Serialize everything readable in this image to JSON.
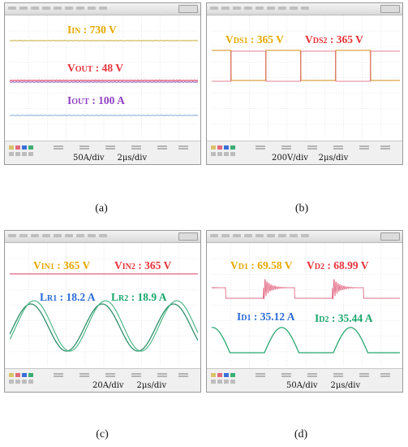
{
  "colors": {
    "orange": "#e6a800",
    "red": "#e8333a",
    "purple": "#8e3fc4",
    "blue": "#2a6bd6",
    "green": "#1aa66c",
    "trace_yellow": "#d4c26a",
    "trace_red": "#e0607a",
    "trace_purple": "#9b6fc6",
    "trace_green": "#2aa871"
  },
  "panels": [
    {
      "caption": "(a)",
      "scale_left": "50A/div",
      "scale_right": "2μs/div",
      "labels": [
        {
          "main": "I",
          "sub": "IN",
          "rest": " : 730 V",
          "color": "orange"
        },
        {
          "main": "V",
          "sub": "OUT",
          "rest": " : 48 V",
          "color": "red"
        },
        {
          "main": "I",
          "sub": "OUT",
          "rest": " : 100 A",
          "color": "purple"
        }
      ]
    },
    {
      "caption": "(b)",
      "scale_left": "200V/div",
      "scale_right": "2μs/div",
      "labels": [
        {
          "main": "V",
          "sub": "DS1",
          "rest": " : 365 V",
          "color": "orange"
        },
        {
          "main": "V",
          "sub": "DS2",
          "rest": " : 365 V",
          "color": "red"
        }
      ]
    },
    {
      "caption": "(c)",
      "scale_left": "20A/div",
      "scale_right": "2μs/div",
      "labels": [
        {
          "main": "V",
          "sub": "IN1",
          "rest": " : 365 V",
          "color": "orange"
        },
        {
          "main": "V",
          "sub": "IN2",
          "rest": " : 365 V",
          "color": "red"
        },
        {
          "main": "L",
          "sub": "R1",
          "rest": " : 18.2 A",
          "color": "blue"
        },
        {
          "main": "L",
          "sub": "R2",
          "rest": " : 18.9 A",
          "color": "green"
        }
      ]
    },
    {
      "caption": "(d)",
      "scale_left": "50A/div",
      "scale_right": "2μs/div",
      "labels": [
        {
          "main": "V",
          "sub": "D1",
          "rest": " : 69.58 V",
          "color": "orange"
        },
        {
          "main": "V",
          "sub": "D2",
          "rest": " : 68.99 V",
          "color": "red"
        },
        {
          "main": "I",
          "sub": "D1",
          "rest": " : 35.12 A",
          "color": "blue"
        },
        {
          "main": "I",
          "sub": "D2",
          "rest": " : 35.44 A",
          "color": "green"
        }
      ]
    }
  ],
  "chart_data": [
    {
      "type": "line",
      "title": "",
      "xlabel": "",
      "ylabel": "",
      "x_unit_per_div": "2μs/div",
      "y_unit_per_div": "50A/div",
      "grid": true,
      "series": [
        {
          "name": "IIN",
          "kind": "dc",
          "value": 730,
          "unit": "V"
        },
        {
          "name": "VOUT",
          "kind": "dc",
          "value": 48,
          "unit": "V"
        },
        {
          "name": "IOUT",
          "kind": "dc",
          "value": 100,
          "unit": "A"
        }
      ]
    },
    {
      "type": "line",
      "title": "",
      "xlabel": "",
      "ylabel": "",
      "x_unit_per_div": "2μs/div",
      "y_unit_per_div": "200V/div",
      "grid": true,
      "series": [
        {
          "name": "VDS1",
          "kind": "square",
          "amplitude": 365,
          "unit": "V"
        },
        {
          "name": "VDS2",
          "kind": "square",
          "amplitude": 365,
          "unit": "V"
        }
      ]
    },
    {
      "type": "line",
      "title": "",
      "xlabel": "",
      "ylabel": "",
      "x_unit_per_div": "2μs/div",
      "y_unit_per_div": "20A/div",
      "grid": true,
      "series": [
        {
          "name": "VIN1",
          "kind": "dc",
          "value": 365,
          "unit": "V"
        },
        {
          "name": "VIN2",
          "kind": "dc",
          "value": 365,
          "unit": "V"
        },
        {
          "name": "LR1",
          "kind": "sine",
          "value": 18.2,
          "unit": "A"
        },
        {
          "name": "LR2",
          "kind": "sine",
          "value": 18.9,
          "unit": "A"
        }
      ]
    },
    {
      "type": "line",
      "title": "",
      "xlabel": "",
      "ylabel": "",
      "x_unit_per_div": "2μs/div",
      "y_unit_per_div": "50A/div",
      "grid": true,
      "series": [
        {
          "name": "VD1",
          "kind": "pulse",
          "value": 69.58,
          "unit": "V"
        },
        {
          "name": "VD2",
          "kind": "pulse",
          "value": 68.99,
          "unit": "V"
        },
        {
          "name": "ID1",
          "kind": "rectified-sine",
          "value": 35.12,
          "unit": "A"
        },
        {
          "name": "ID2",
          "kind": "rectified-sine",
          "value": 35.44,
          "unit": "A"
        }
      ]
    }
  ]
}
